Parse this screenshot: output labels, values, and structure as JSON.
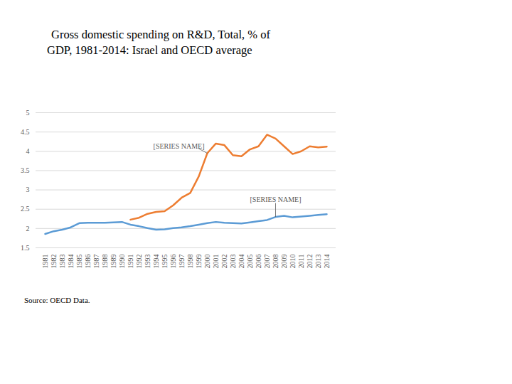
{
  "chart_data": {
    "type": "line",
    "title": "Gross domestic spending on R&D, Total, % of GDP, 1981-2014: Israel and OECD average",
    "caption": "Source: OECD Data.",
    "categories": [
      "1981",
      "1982",
      "1983",
      "1984",
      "1985",
      "1986",
      "1987",
      "1988",
      "1989",
      "1990",
      "1991",
      "1992",
      "1993",
      "1994",
      "1995",
      "1996",
      "1997",
      "1998",
      "1999",
      "2000",
      "2001",
      "2002",
      "2003",
      "2004",
      "2005",
      "2006",
      "2007",
      "2008",
      "2009",
      "2010",
      "2011",
      "2012",
      "2013",
      "2014"
    ],
    "series": [
      {
        "name": "[SERIES NAME]",
        "color": "#ed7d31",
        "values": [
          null,
          null,
          null,
          null,
          null,
          null,
          null,
          null,
          null,
          null,
          2.23,
          2.28,
          2.38,
          2.43,
          2.45,
          2.6,
          2.8,
          2.92,
          3.35,
          3.95,
          4.2,
          4.16,
          3.9,
          3.87,
          4.05,
          4.13,
          4.43,
          4.33,
          4.13,
          3.93,
          4.0,
          4.13,
          4.1,
          4.12
        ]
      },
      {
        "name": "[SERIES NAME]",
        "color": "#5b9bd5",
        "values": [
          1.86,
          1.93,
          1.97,
          2.03,
          2.14,
          2.15,
          2.15,
          2.15,
          2.16,
          2.17,
          2.1,
          2.06,
          2.01,
          1.97,
          1.98,
          2.01,
          2.03,
          2.06,
          2.1,
          2.14,
          2.17,
          2.15,
          2.14,
          2.13,
          2.16,
          2.19,
          2.22,
          2.3,
          2.33,
          2.29,
          2.31,
          2.33,
          2.35,
          2.37
        ]
      }
    ],
    "ylim": [
      1.5,
      5
    ],
    "yticks": [
      1.5,
      2,
      2.5,
      3,
      3.5,
      4,
      4.5,
      5
    ],
    "grid": true
  }
}
